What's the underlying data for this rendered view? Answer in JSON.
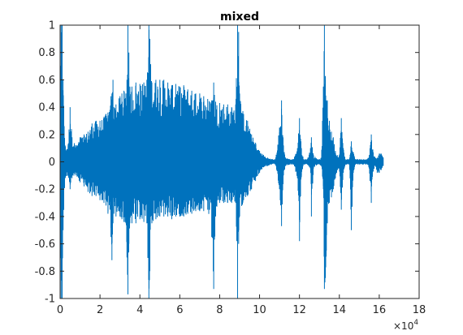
{
  "chart_data": {
    "type": "line",
    "title": "mixed",
    "xlabel": "",
    "ylabel": "",
    "x_multiplier_label": "×10",
    "x_multiplier_exponent": "4",
    "xlim": [
      0,
      180000
    ],
    "ylim": [
      -1,
      1
    ],
    "xticks": [
      0,
      20000,
      40000,
      60000,
      80000,
      100000,
      120000,
      140000,
      160000,
      180000
    ],
    "xtick_labels": [
      "0",
      "2",
      "4",
      "6",
      "8",
      "10",
      "12",
      "14",
      "16",
      "18"
    ],
    "yticks": [
      -1,
      -0.8,
      -0.6,
      -0.4,
      -0.2,
      0,
      0.2,
      0.4,
      0.6,
      0.8,
      1
    ],
    "ytick_labels": [
      "-1",
      "-0.8",
      "-0.6",
      "-0.4",
      "-0.2",
      "0",
      "0.2",
      "0.4",
      "0.6",
      "0.8",
      "1"
    ],
    "grid": false,
    "line_color": "#0072BD",
    "series": [
      {
        "values": [
          {
            "x": 0,
            "y": [
              -0.05,
              0.05
            ]
          },
          {
            "x": 500,
            "y": [
              -1,
              1
            ]
          },
          {
            "x": 1000,
            "y": [
              -1,
              1
            ]
          },
          {
            "x": 1500,
            "y": [
              -0.5,
              0.6
            ]
          },
          {
            "x": 2500,
            "y": [
              -0.12,
              0.12
            ]
          },
          {
            "x": 4000,
            "y": [
              -0.1,
              0.12
            ]
          },
          {
            "x": 5000,
            "y": [
              -0.2,
              0.4
            ]
          },
          {
            "x": 6000,
            "y": [
              -0.12,
              0.18
            ]
          },
          {
            "x": 8000,
            "y": [
              -0.1,
              0.12
            ]
          },
          {
            "x": 10000,
            "y": [
              -0.15,
              0.18
            ]
          },
          {
            "x": 12000,
            "y": [
              -0.18,
              0.2
            ]
          },
          {
            "x": 14000,
            "y": [
              -0.22,
              0.22
            ]
          },
          {
            "x": 16000,
            "y": [
              -0.25,
              0.28
            ]
          },
          {
            "x": 18000,
            "y": [
              -0.25,
              0.3
            ]
          },
          {
            "x": 20000,
            "y": [
              -0.28,
              0.3
            ]
          },
          {
            "x": 22000,
            "y": [
              -0.3,
              0.33
            ]
          },
          {
            "x": 23000,
            "y": [
              -0.32,
              0.35
            ]
          },
          {
            "x": 24000,
            "y": [
              -0.38,
              0.36
            ]
          },
          {
            "x": 25000,
            "y": [
              -0.35,
              0.38
            ]
          },
          {
            "x": 25500,
            "y": [
              -0.55,
              0.48
            ]
          },
          {
            "x": 26000,
            "y": [
              -0.72,
              0.5
            ]
          },
          {
            "x": 26500,
            "y": [
              -0.45,
              0.6
            ]
          },
          {
            "x": 27000,
            "y": [
              -0.38,
              0.4
            ]
          },
          {
            "x": 28000,
            "y": [
              -0.4,
              0.42
            ]
          },
          {
            "x": 30000,
            "y": [
              -0.4,
              0.48
            ]
          },
          {
            "x": 31000,
            "y": [
              -0.42,
              0.5
            ]
          },
          {
            "x": 32000,
            "y": [
              -0.44,
              0.52
            ]
          },
          {
            "x": 33000,
            "y": [
              -0.45,
              0.5
            ]
          },
          {
            "x": 33500,
            "y": [
              -0.7,
              0.6
            ]
          },
          {
            "x": 34000,
            "y": [
              -0.97,
              1
            ]
          },
          {
            "x": 34500,
            "y": [
              -0.6,
              0.8
            ]
          },
          {
            "x": 35000,
            "y": [
              -0.45,
              0.55
            ]
          },
          {
            "x": 36000,
            "y": [
              -0.45,
              0.55
            ]
          },
          {
            "x": 38000,
            "y": [
              -0.45,
              0.58
            ]
          },
          {
            "x": 40000,
            "y": [
              -0.42,
              0.57
            ]
          },
          {
            "x": 42000,
            "y": [
              -0.44,
              0.58
            ]
          },
          {
            "x": 43500,
            "y": [
              -0.45,
              0.6
            ]
          },
          {
            "x": 44500,
            "y": [
              -1,
              1
            ]
          },
          {
            "x": 45000,
            "y": [
              -0.8,
              0.9
            ]
          },
          {
            "x": 46000,
            "y": [
              -0.45,
              0.58
            ]
          },
          {
            "x": 48000,
            "y": [
              -0.42,
              0.6
            ]
          },
          {
            "x": 50000,
            "y": [
              -0.4,
              0.6
            ]
          },
          {
            "x": 52000,
            "y": [
              -0.4,
              0.6
            ]
          },
          {
            "x": 54000,
            "y": [
              -0.4,
              0.58
            ]
          },
          {
            "x": 56000,
            "y": [
              -0.42,
              0.56
            ]
          },
          {
            "x": 58000,
            "y": [
              -0.4,
              0.57
            ]
          },
          {
            "x": 60000,
            "y": [
              -0.4,
              0.55
            ]
          },
          {
            "x": 62000,
            "y": [
              -0.4,
              0.56
            ]
          },
          {
            "x": 64000,
            "y": [
              -0.38,
              0.53
            ]
          },
          {
            "x": 66000,
            "y": [
              -0.38,
              0.52
            ]
          },
          {
            "x": 68000,
            "y": [
              -0.36,
              0.5
            ]
          },
          {
            "x": 70000,
            "y": [
              -0.36,
              0.5
            ]
          },
          {
            "x": 72000,
            "y": [
              -0.36,
              0.48
            ]
          },
          {
            "x": 74000,
            "y": [
              -0.35,
              0.46
            ]
          },
          {
            "x": 76000,
            "y": [
              -0.55,
              0.45
            ]
          },
          {
            "x": 77000,
            "y": [
              -0.93,
              0.58
            ]
          },
          {
            "x": 78000,
            "y": [
              -0.4,
              0.44
            ]
          },
          {
            "x": 80000,
            "y": [
              -0.3,
              0.43
            ]
          },
          {
            "x": 82000,
            "y": [
              -0.3,
              0.42
            ]
          },
          {
            "x": 84000,
            "y": [
              -0.3,
              0.42
            ]
          },
          {
            "x": 86000,
            "y": [
              -0.3,
              0.4
            ]
          },
          {
            "x": 88000,
            "y": [
              -0.3,
              0.42
            ]
          },
          {
            "x": 89000,
            "y": [
              -1,
              1
            ]
          },
          {
            "x": 89500,
            "y": [
              -0.6,
              0.95
            ]
          },
          {
            "x": 90000,
            "y": [
              -0.4,
              0.5
            ]
          },
          {
            "x": 92000,
            "y": [
              -0.28,
              0.35
            ]
          },
          {
            "x": 94000,
            "y": [
              -0.25,
              0.3
            ]
          },
          {
            "x": 96000,
            "y": [
              -0.2,
              0.2
            ]
          },
          {
            "x": 98000,
            "y": [
              -0.14,
              0.14
            ]
          },
          {
            "x": 100000,
            "y": [
              -0.08,
              0.08
            ]
          },
          {
            "x": 102000,
            "y": [
              -0.04,
              0.05
            ]
          },
          {
            "x": 104000,
            "y": [
              -0.03,
              0.03
            ]
          },
          {
            "x": 106000,
            "y": [
              -0.02,
              0.02
            ]
          },
          {
            "x": 108000,
            "y": [
              -0.02,
              0.02
            ]
          },
          {
            "x": 110000,
            "y": [
              -0.2,
              0.25
            ]
          },
          {
            "x": 111000,
            "y": [
              -0.47,
              0.45
            ]
          },
          {
            "x": 112000,
            "y": [
              -0.1,
              0.12
            ]
          },
          {
            "x": 113000,
            "y": [
              -0.03,
              0.03
            ]
          },
          {
            "x": 115000,
            "y": [
              -0.02,
              0.02
            ]
          },
          {
            "x": 117000,
            "y": [
              -0.02,
              0.02
            ]
          },
          {
            "x": 119000,
            "y": [
              -0.12,
              0.1
            ]
          },
          {
            "x": 120000,
            "y": [
              -0.58,
              0.32
            ]
          },
          {
            "x": 121000,
            "y": [
              -0.1,
              0.1
            ]
          },
          {
            "x": 122000,
            "y": [
              -0.02,
              0.02
            ]
          },
          {
            "x": 124000,
            "y": [
              -0.02,
              0.02
            ]
          },
          {
            "x": 125500,
            "y": [
              -0.05,
              0.1
            ]
          },
          {
            "x": 126000,
            "y": [
              -0.4,
              0.18
            ]
          },
          {
            "x": 127000,
            "y": [
              -0.05,
              0.05
            ]
          },
          {
            "x": 129000,
            "y": [
              -0.02,
              0.02
            ]
          },
          {
            "x": 131000,
            "y": [
              -0.03,
              0.03
            ]
          },
          {
            "x": 132000,
            "y": [
              -0.2,
              0.55
            ]
          },
          {
            "x": 132500,
            "y": [
              -0.93,
              1
            ]
          },
          {
            "x": 133000,
            "y": [
              -0.85,
              0.6
            ]
          },
          {
            "x": 133500,
            "y": [
              -0.65,
              0.45
            ]
          },
          {
            "x": 134000,
            "y": [
              -0.45,
              0.45
            ]
          },
          {
            "x": 135000,
            "y": [
              -0.3,
              0.3
            ]
          },
          {
            "x": 136000,
            "y": [
              -0.26,
              0.22
            ]
          },
          {
            "x": 137000,
            "y": [
              -0.2,
              0.18
            ]
          },
          {
            "x": 138000,
            "y": [
              -0.12,
              0.08
            ]
          },
          {
            "x": 139000,
            "y": [
              -0.06,
              0.05
            ]
          },
          {
            "x": 140000,
            "y": [
              -0.05,
              0.05
            ]
          },
          {
            "x": 141000,
            "y": [
              -0.35,
              0.32
            ]
          },
          {
            "x": 142000,
            "y": [
              -0.08,
              0.1
            ]
          },
          {
            "x": 143000,
            "y": [
              -0.02,
              0.02
            ]
          },
          {
            "x": 145000,
            "y": [
              -0.02,
              0.02
            ]
          },
          {
            "x": 146000,
            "y": [
              -0.5,
              0.15
            ]
          },
          {
            "x": 147000,
            "y": [
              -0.08,
              0.07
            ]
          },
          {
            "x": 148000,
            "y": [
              -0.02,
              0.02
            ]
          },
          {
            "x": 150000,
            "y": [
              -0.02,
              0.02
            ]
          },
          {
            "x": 152000,
            "y": [
              -0.02,
              0.02
            ]
          },
          {
            "x": 154000,
            "y": [
              -0.02,
              0.02
            ]
          },
          {
            "x": 155000,
            "y": [
              -0.05,
              0.05
            ]
          },
          {
            "x": 156000,
            "y": [
              -0.3,
              0.2
            ]
          },
          {
            "x": 157000,
            "y": [
              -0.07,
              0.07
            ]
          },
          {
            "x": 158000,
            "y": [
              -0.03,
              0.03
            ]
          },
          {
            "x": 159000,
            "y": [
              -0.08,
              0.03
            ]
          },
          {
            "x": 160000,
            "y": [
              -0.08,
              0.06
            ]
          },
          {
            "x": 161000,
            "y": [
              -0.06,
              0.06
            ]
          },
          {
            "x": 162000,
            "y": [
              -0.03,
              0.03
            ]
          }
        ]
      }
    ]
  }
}
